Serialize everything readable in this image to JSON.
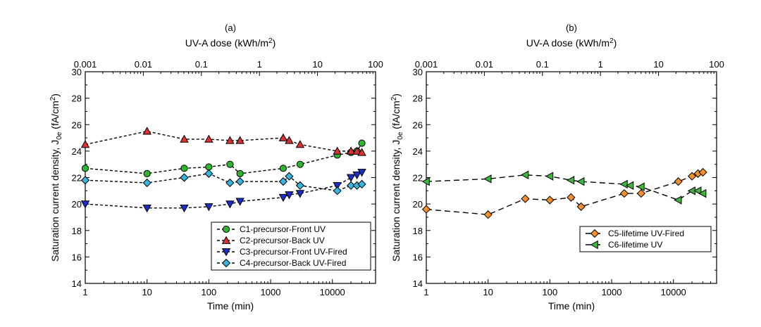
{
  "chart_data": [
    {
      "type": "scatter",
      "panel_label": "(a)",
      "xlabel": "Time (min)",
      "ylabel": "Saturation current density, J",
      "ylabel_sub": "0e",
      "ylabel_unit": " (fA/cm",
      "ylabel_sup": "2",
      "ylabel_close": ")",
      "top_xlabel": "UV-A dose (kWh/m",
      "top_xlabel_sup": "2",
      "top_xlabel_close": ")",
      "x_scale": "log",
      "xlim": [
        1,
        50000
      ],
      "ylim": [
        14,
        30
      ],
      "x_ticks": [
        "1",
        "10",
        "100",
        "1000",
        "10000"
      ],
      "y_ticks": [
        "14",
        "16",
        "18",
        "20",
        "22",
        "24",
        "26",
        "28",
        "30"
      ],
      "top_ticks": [
        "0.001",
        "0.01",
        "0.1",
        "1",
        "10",
        "100"
      ],
      "top_axis_range": [
        0.001,
        100
      ],
      "legend_position": "bottom-right",
      "series": [
        {
          "name": "C1-precursor-Front UV",
          "marker": "circle",
          "color": "#2db52d",
          "x": [
            1,
            10,
            40,
            100,
            220,
            320,
            1600,
            3000,
            12000,
            20000,
            25000,
            30000
          ],
          "y": [
            22.7,
            22.3,
            22.7,
            22.8,
            23.0,
            22.3,
            22.7,
            23.0,
            23.7,
            23.9,
            24.0,
            24.6
          ]
        },
        {
          "name": "C2-precursor-Back UV",
          "marker": "triangle-up",
          "color": "#e03030",
          "x": [
            1,
            10,
            40,
            100,
            220,
            320,
            1600,
            2000,
            3000,
            12000,
            20000,
            25000,
            30000
          ],
          "y": [
            24.5,
            25.5,
            24.9,
            24.9,
            24.8,
            24.8,
            25.0,
            24.8,
            24.5,
            24.0,
            24.0,
            24.0,
            23.9
          ]
        },
        {
          "name": "C3-precursor-Front UV-Fired",
          "marker": "triangle-down",
          "color": "#1a2ec8",
          "x": [
            1,
            10,
            40,
            100,
            220,
            320,
            1600,
            2000,
            3000,
            12000,
            20000,
            25000,
            30000
          ],
          "y": [
            20.0,
            19.7,
            19.7,
            19.8,
            20.0,
            20.2,
            20.5,
            20.7,
            20.8,
            21.4,
            22.0,
            22.2,
            22.4
          ]
        },
        {
          "name": "C4-precursor-Back UV-Fired",
          "marker": "diamond",
          "color": "#38b4e0",
          "x": [
            1,
            10,
            40,
            100,
            220,
            320,
            1600,
            2000,
            3000,
            12000,
            20000,
            25000,
            30000
          ],
          "y": [
            21.8,
            21.6,
            22.0,
            22.3,
            21.6,
            21.7,
            21.7,
            22.1,
            21.4,
            21.0,
            21.4,
            21.4,
            21.5
          ]
        }
      ]
    },
    {
      "type": "scatter",
      "panel_label": "(b)",
      "xlabel": "Time (min)",
      "ylabel": "Saturation current density, J",
      "ylabel_sub": "0e",
      "ylabel_unit": " (fA/cm",
      "ylabel_sup": "2",
      "ylabel_close": ")",
      "top_xlabel": "UV-A dose (kWh/m",
      "top_xlabel_sup": "2",
      "top_xlabel_close": ")",
      "x_scale": "log",
      "xlim": [
        1,
        50000
      ],
      "ylim": [
        14,
        30
      ],
      "x_ticks": [
        "1",
        "10",
        "100",
        "1000",
        "10000"
      ],
      "y_ticks": [
        "14",
        "16",
        "18",
        "20",
        "22",
        "24",
        "26",
        "28",
        "30"
      ],
      "top_ticks": [
        "0.001",
        "0.01",
        "0.1",
        "1",
        "10",
        "100"
      ],
      "top_axis_range": [
        0.001,
        100
      ],
      "legend_position": "bottom-right",
      "series": [
        {
          "name": "C5-lifetime UV-Fired",
          "marker": "diamond",
          "color": "#f5902a",
          "x": [
            1,
            10,
            40,
            100,
            220,
            320,
            1600,
            3000,
            12000,
            20000,
            25000,
            30000
          ],
          "y": [
            19.6,
            19.2,
            20.4,
            20.3,
            20.5,
            19.8,
            20.8,
            20.8,
            21.7,
            22.1,
            22.3,
            22.4
          ]
        },
        {
          "name": "C6-lifetime UV",
          "marker": "triangle-left",
          "color": "#3cb83c",
          "x": [
            1,
            10,
            40,
            100,
            220,
            320,
            1600,
            2000,
            3000,
            12000,
            20000,
            25000,
            30000
          ],
          "y": [
            21.7,
            21.9,
            22.2,
            22.1,
            21.8,
            21.7,
            21.5,
            21.4,
            21.3,
            20.3,
            21.0,
            21.0,
            20.8
          ]
        }
      ]
    }
  ]
}
